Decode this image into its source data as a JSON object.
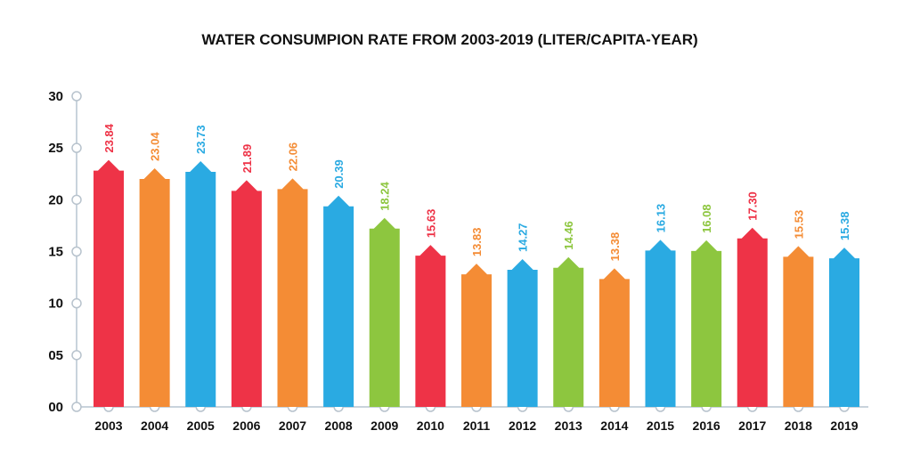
{
  "chart_data": {
    "type": "bar",
    "title": "WATER CONSUMPION RATE FROM 2003-2019 (LITER/CAPITA-YEAR)",
    "xlabel": "",
    "ylabel": "",
    "ylim": [
      0,
      30
    ],
    "y_ticks": [
      "00",
      "05",
      "10",
      "15",
      "20",
      "25",
      "30"
    ],
    "categories": [
      "2003",
      "2004",
      "2005",
      "2006",
      "2007",
      "2008",
      "2009",
      "2010",
      "2011",
      "2012",
      "2013",
      "2014",
      "2015",
      "2016",
      "2017",
      "2018",
      "2019"
    ],
    "values": [
      23.84,
      23.04,
      23.73,
      21.89,
      22.06,
      20.39,
      18.24,
      15.63,
      13.83,
      14.27,
      14.46,
      13.38,
      16.13,
      16.08,
      17.3,
      15.53,
      15.38
    ],
    "value_labels": [
      "23.84",
      "23.04",
      "23.73",
      "21.89",
      "22.06",
      "20.39",
      "18.24",
      "15.63",
      "13.83",
      "14.27",
      "14.46",
      "13.38",
      "16.13",
      "16.08",
      "17.30",
      "15.53",
      "15.38"
    ],
    "bar_colors": [
      "#ee3347",
      "#f48c35",
      "#2aaae2",
      "#ee3347",
      "#f48c35",
      "#2aaae2",
      "#8dc63f",
      "#ee3347",
      "#f48c35",
      "#2aaae2",
      "#8dc63f",
      "#f48c35",
      "#2aaae2",
      "#8dc63f",
      "#ee3347",
      "#f48c35",
      "#2aaae2"
    ],
    "bar_shape": "arrow-top",
    "grid": false,
    "legend": "none"
  }
}
